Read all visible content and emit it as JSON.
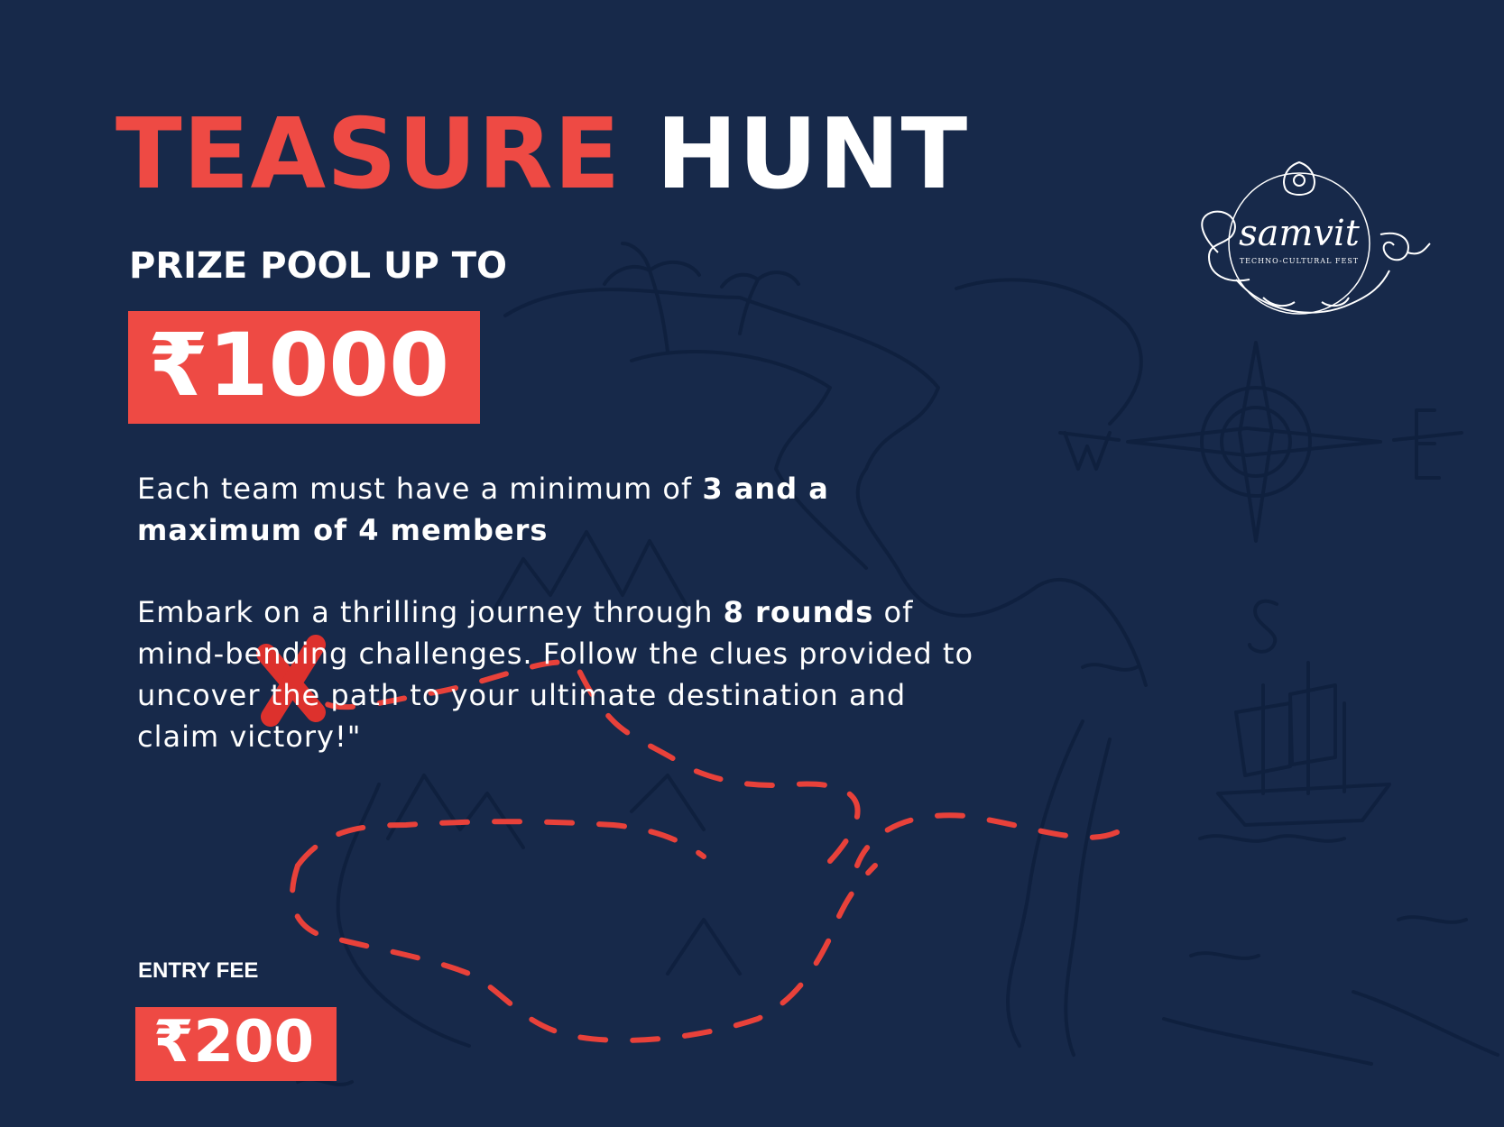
{
  "poster": {
    "title_red": "TEASURE",
    "title_white": "HUNT",
    "prize_label": "PRIZE POOL UP TO",
    "prize_amount": "₹1000",
    "description_1": {
      "text_before": "Each team must have a minimum of ",
      "text_bold": "3 and a maximum of 4 members"
    },
    "description_2": {
      "text_before": "Embark on a thrilling journey through ",
      "text_bold": "8 rounds",
      "text_after": " of mind-bending challenges. Follow the clues provided to uncover the path to your ultimate destination and claim victory!\""
    },
    "entry_fee_label": "ENTRY FEE",
    "entry_fee_amount": "₹200"
  },
  "logo": {
    "name": "samvit",
    "subtitle": "TECHNO-CULTURAL FEST"
  },
  "colors": {
    "background": "#17294a",
    "accent": "#ee4a44",
    "text": "#ffffff"
  },
  "icons": {
    "map": "treasure-map-icon",
    "compass": "compass-rose-icon",
    "ship": "ship-icon",
    "palm": "palm-tree-icon",
    "cross": "x-mark-icon"
  }
}
